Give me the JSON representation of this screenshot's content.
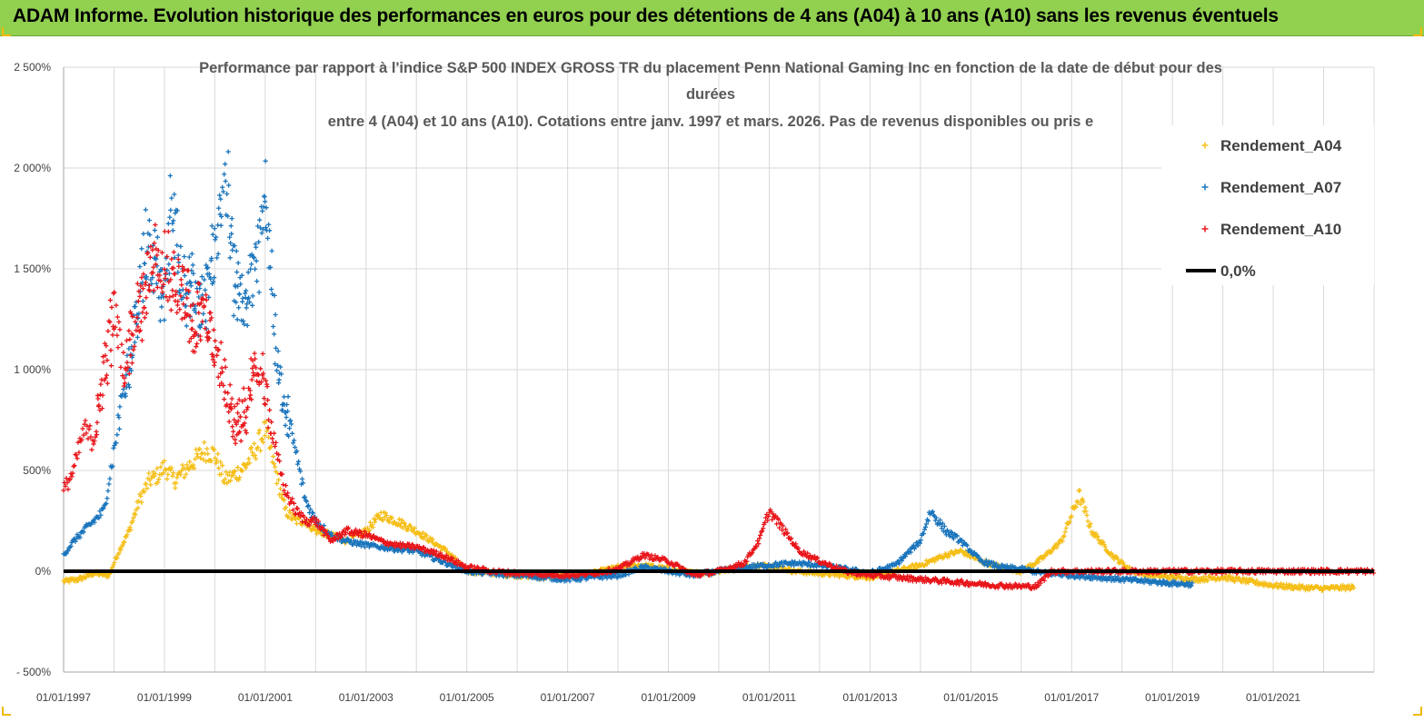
{
  "header": {
    "title": "ADAM Informe. Evolution historique des performances en euros pour des détentions de 4 ans (A04) à 10 ans (A10) sans les revenus éventuels"
  },
  "colors": {
    "banner": "#92d050",
    "a04": "#f5bf19",
    "a07": "#1b75bc",
    "a10": "#e8161b",
    "zero": "#000000",
    "grid": "#d9d9d9"
  },
  "chart_data": {
    "type": "scatter",
    "title_lines": [
      "Performance par rapport à l'indice S&P 500 INDEX GROSS TR  du placement Penn National Gaming Inc en fonction de la date de début pour des",
      "durées",
      "entre 4 (A04) et 10 ans (A10).  Cotations entre janv. 1997 et mars. 2026. Pas de revenus disponibles ou pris e"
    ],
    "xlabel": "",
    "ylabel": "",
    "x_ticks": [
      "01/01/1997",
      "01/01/1999",
      "01/01/2001",
      "01/01/2003",
      "01/01/2005",
      "01/01/2007",
      "01/01/2009",
      "01/01/2011",
      "01/01/2013",
      "01/01/2015",
      "01/01/2017",
      "01/01/2019",
      "01/01/2021"
    ],
    "y_ticks": [
      "2 500%",
      "2 000%",
      "1 500%",
      "1 000%",
      "500%",
      "0%",
      "- 500%"
    ],
    "y_tick_values": [
      2500,
      2000,
      1500,
      1000,
      500,
      0,
      -500
    ],
    "xlim": [
      1997.0,
      2023.0
    ],
    "ylim": [
      -500,
      2500
    ],
    "series": [
      {
        "name": "Rendement_A04",
        "marker": "+",
        "x": [
          1997.0,
          1997.3,
          1997.6,
          1997.9,
          1998.1,
          1998.3,
          1998.5,
          1998.7,
          1998.9,
          1999.0,
          1999.2,
          1999.4,
          1999.6,
          1999.8,
          2000.0,
          2000.2,
          2000.4,
          2000.6,
          2000.8,
          2001.0,
          2001.2,
          2001.4,
          2001.6,
          2001.8,
          2002.0,
          2002.3,
          2002.6,
          2003.0,
          2003.3,
          2003.6,
          2004.0,
          2004.3,
          2004.6,
          2005.0,
          2005.5,
          2006.0,
          2006.5,
          2007.0,
          2007.5,
          2008.0,
          2008.5,
          2009.0,
          2009.5,
          2010.0,
          2010.5,
          2011.0,
          2011.5,
          2012.0,
          2012.5,
          2013.0,
          2013.5,
          2014.0,
          2014.5,
          2014.8,
          2015.2,
          2015.6,
          2016.0,
          2016.4,
          2016.8,
          2017.0,
          2017.15,
          2017.4,
          2017.8,
          2018.2,
          2018.6,
          2019.0,
          2019.5,
          2020.0,
          2020.5,
          2021.0,
          2021.5,
          2022.0,
          2022.6
        ],
        "values": [
          -50,
          -40,
          -10,
          -20,
          100,
          200,
          350,
          450,
          480,
          520,
          450,
          500,
          550,
          600,
          580,
          450,
          480,
          520,
          600,
          700,
          500,
          300,
          250,
          250,
          200,
          180,
          150,
          200,
          280,
          250,
          200,
          150,
          100,
          0,
          -10,
          -20,
          -30,
          -20,
          -10,
          20,
          30,
          10,
          -10,
          0,
          20,
          30,
          0,
          -10,
          -20,
          -30,
          0,
          30,
          80,
          100,
          50,
          20,
          0,
          60,
          150,
          280,
          380,
          200,
          80,
          0,
          -20,
          -30,
          -40,
          -30,
          -50,
          -70,
          -80,
          -85,
          -80
        ]
      },
      {
        "name": "Rendement_A07",
        "marker": "+",
        "x": [
          1997.0,
          1997.2,
          1997.4,
          1997.6,
          1997.8,
          1998.0,
          1998.2,
          1998.4,
          1998.6,
          1998.8,
          1999.0,
          1999.15,
          1999.3,
          1999.5,
          1999.7,
          1999.9,
          2000.0,
          2000.2,
          2000.4,
          2000.6,
          2000.8,
          2001.0,
          2001.2,
          2001.4,
          2001.6,
          2001.8,
          2002.0,
          2002.3,
          2002.6,
          2003.0,
          2003.3,
          2003.6,
          2004.0,
          2004.5,
          2005.0,
          2005.5,
          2006.0,
          2006.5,
          2007.0,
          2007.5,
          2008.0,
          2008.5,
          2009.0,
          2009.5,
          2010.0,
          2010.5,
          2011.0,
          2011.5,
          2012.0,
          2012.5,
          2013.0,
          2013.5,
          2014.0,
          2014.2,
          2014.5,
          2014.8,
          2015.2,
          2015.6,
          2016.0,
          2016.5,
          2017.0,
          2017.5,
          2018.0,
          2018.5,
          2019.0,
          2019.4
        ],
        "values": [
          80,
          150,
          200,
          250,
          300,
          600,
          900,
          1200,
          1600,
          1500,
          1300,
          1900,
          1500,
          1400,
          1300,
          1500,
          1600,
          2000,
          1400,
          1300,
          1500,
          1900,
          1100,
          800,
          600,
          350,
          250,
          180,
          150,
          130,
          120,
          110,
          100,
          50,
          0,
          -10,
          -20,
          -30,
          -40,
          -30,
          -20,
          20,
          0,
          -20,
          0,
          20,
          30,
          40,
          30,
          10,
          -10,
          30,
          150,
          300,
          200,
          150,
          50,
          20,
          10,
          -10,
          -20,
          -30,
          -40,
          -50,
          -60,
          -65
        ]
      },
      {
        "name": "Rendement_A10",
        "marker": "+",
        "x": [
          1997.0,
          1997.2,
          1997.4,
          1997.6,
          1997.8,
          1998.0,
          1998.2,
          1998.4,
          1998.6,
          1998.8,
          1999.0,
          1999.2,
          1999.4,
          1999.6,
          1999.8,
          2000.0,
          2000.2,
          2000.4,
          2000.6,
          2000.8,
          2001.0,
          2001.2,
          2001.4,
          2001.6,
          2001.8,
          2002.0,
          2002.3,
          2002.6,
          2003.0,
          2003.3,
          2003.6,
          2004.0,
          2004.5,
          2005.0,
          2005.5,
          2006.0,
          2006.5,
          2007.0,
          2007.5,
          2008.0,
          2008.5,
          2009.0,
          2009.5,
          2010.0,
          2010.5,
          2010.8,
          2011.0,
          2011.3,
          2011.6,
          2012.0,
          2012.5,
          2013.0,
          2013.5,
          2014.0,
          2014.5,
          2015.0,
          2015.5,
          2016.0,
          2016.3,
          2016.6,
          2017.0,
          2017.5,
          2018.0,
          2018.5,
          2019.0,
          2019.5,
          2020.0,
          2020.5,
          2021.0,
          2021.5,
          2022.0,
          2022.5,
          2023.0
        ],
        "values": [
          400,
          500,
          700,
          650,
          1000,
          1300,
          1000,
          1200,
          1400,
          1600,
          1500,
          1400,
          1400,
          1200,
          1300,
          1100,
          900,
          700,
          800,
          1000,
          900,
          600,
          400,
          300,
          250,
          250,
          150,
          200,
          180,
          150,
          130,
          120,
          80,
          20,
          0,
          -10,
          -15,
          -20,
          -10,
          10,
          80,
          50,
          -20,
          0,
          40,
          150,
          300,
          200,
          100,
          50,
          0,
          -20,
          -30,
          -40,
          -50,
          -60,
          -70,
          -75,
          -75,
          0,
          0,
          0,
          0,
          0,
          0,
          0,
          0,
          0,
          0,
          0,
          0,
          0,
          0
        ]
      },
      {
        "name": "0,0%",
        "marker": "line",
        "x": [
          1997.0,
          2023.0
        ],
        "values": [
          0,
          0
        ]
      }
    ],
    "legend": "right",
    "grid": true
  }
}
